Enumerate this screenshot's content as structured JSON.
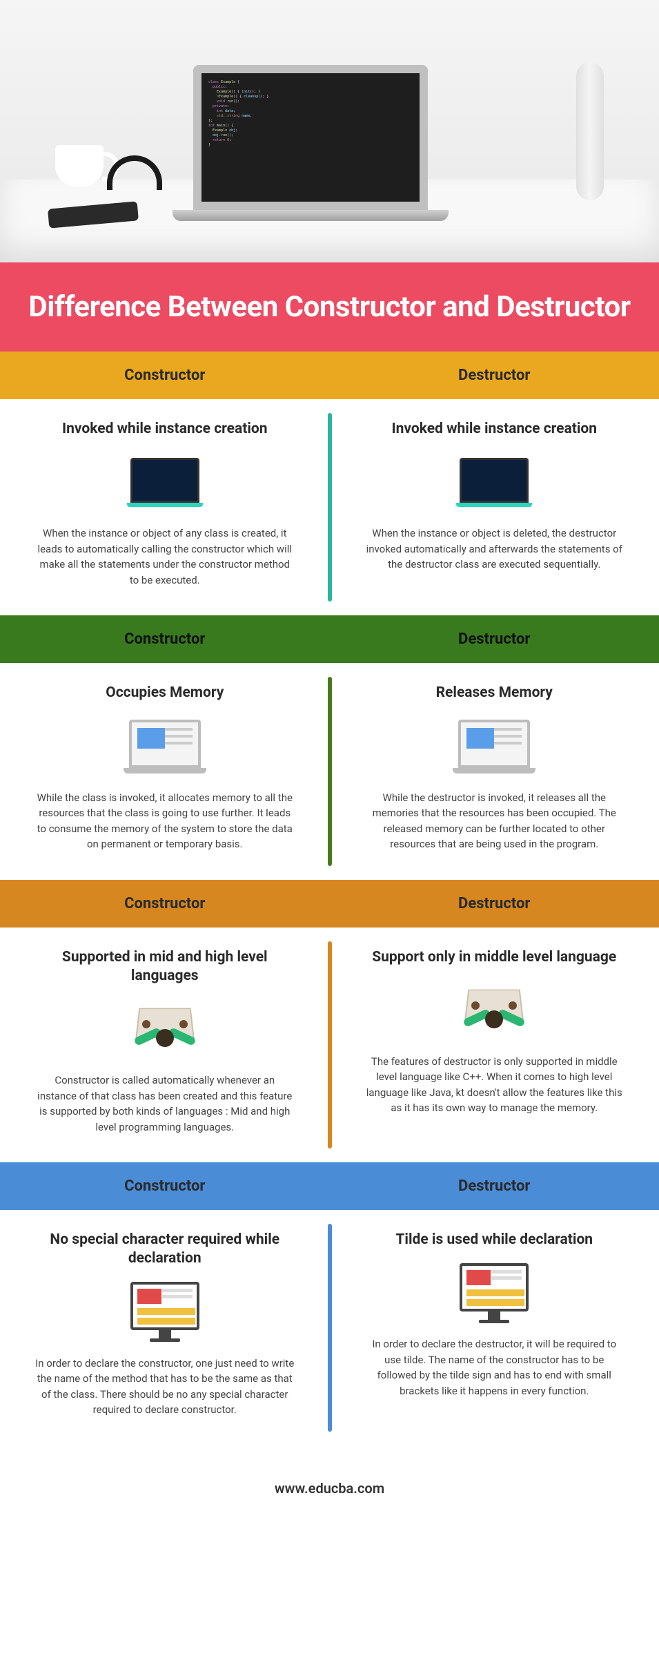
{
  "title": "Difference Between Constructor and Destructor",
  "title_band_color": "#ec4b62",
  "title_text_color": "#ffffff",
  "footer_text": "www.educba.com",
  "column_labels": {
    "left": "Constructor",
    "right": "Destructor"
  },
  "sections": [
    {
      "header_bg": "#e9a81f",
      "header_text_color": "#2a2a2a",
      "divider_color": "#2bb59e",
      "icon": "laptop-dark",
      "left": {
        "title": "Invoked while instance creation",
        "body": "When the instance or object of any class is created, it leads to automatically calling the constructor which will make all the statements under the constructor method to be executed."
      },
      "right": {
        "title": "Invoked while instance creation",
        "body": "When the instance or object is deleted, the destructor invoked automatically and afterwards the statements of the destructor class are executed sequentially."
      }
    },
    {
      "header_bg": "#3a7a1f",
      "header_text_color": "#111111",
      "divider_color": "#4a7a1f",
      "icon": "laptop-grey",
      "left": {
        "title": "Occupies Memory",
        "body": "While the class is invoked, it allocates memory to all the resources that the class is going to use further. It leads to consume the memory of the system to store the data on permanent or temporary basis."
      },
      "right": {
        "title": "Releases Memory",
        "body": "While the destructor is invoked, it releases all the memories that the resources has been occupied. The released memory can be further located to other resources that are being used in the program."
      }
    },
    {
      "header_bg": "#d6871f",
      "header_text_color": "#2a2a2a",
      "divider_color": "#d6871f",
      "icon": "person",
      "left": {
        "title": "Supported in mid and high level languages",
        "body": "Constructor is called automatically whenever an instance of that class has been created and this feature is supported by both kinds of languages : Mid and high level programming languages."
      },
      "right": {
        "title": "Support only in middle level language",
        "body": "The features of destructor is only supported in middle level language like C++. When it comes to high level language like Java, kt doesn't allow the features like this as it has its own way to manage the memory."
      }
    },
    {
      "header_bg": "#4a8cd6",
      "header_text_color": "#2a2a2a",
      "divider_color": "#4a8cd6",
      "icon": "monitor",
      "left": {
        "title": "No special character required while declaration",
        "body": "In order to declare the constructor, one just need to write the name of the method that has to be the same as that of the class. There should be no any special character required to declare constructor."
      },
      "right": {
        "title": "Tilde is used while declaration",
        "body": "In order to declare the destructor, it will be required to use tilde. The name of the constructor has to be followed by the tilde sign and has to end with small brackets like it happens in every function."
      }
    }
  ]
}
